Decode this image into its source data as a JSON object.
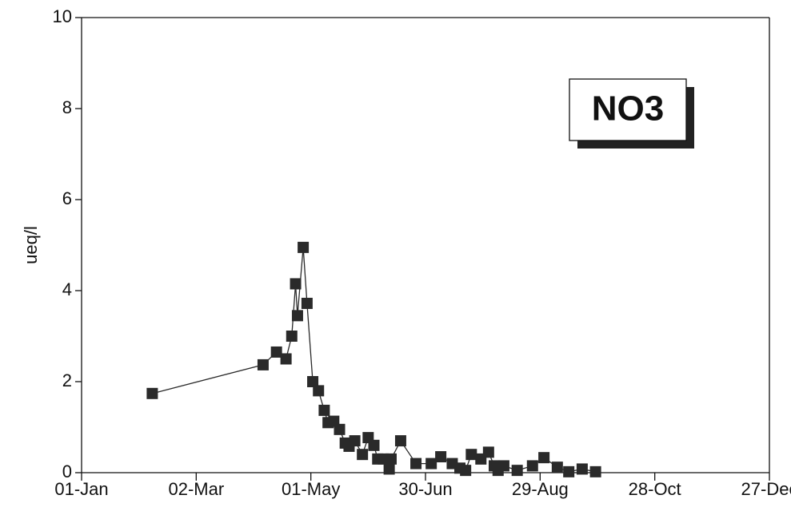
{
  "chart_data": {
    "type": "line",
    "annotation": "NO3",
    "ylabel": "ueq/l",
    "series": [
      {
        "name": "NO3",
        "color": "#2a2a2a",
        "x": [
          37,
          95,
          102,
          107,
          110,
          112,
          113,
          116,
          118,
          121,
          124,
          127,
          129,
          132,
          135,
          138,
          140,
          143,
          147,
          150,
          153,
          155,
          158,
          161,
          162,
          167,
          175,
          183,
          188,
          194,
          198,
          201,
          204,
          209,
          213,
          216,
          218,
          221,
          228,
          236,
          242,
          249,
          255,
          262,
          269
        ],
        "values": [
          1.74,
          2.37,
          2.65,
          2.5,
          3.0,
          4.15,
          3.45,
          4.95,
          3.72,
          2.0,
          1.8,
          1.37,
          1.1,
          1.13,
          0.95,
          0.65,
          0.58,
          0.7,
          0.4,
          0.77,
          0.6,
          0.3,
          0.3,
          0.08,
          0.3,
          0.7,
          0.2,
          0.2,
          0.35,
          0.2,
          0.1,
          0.05,
          0.4,
          0.3,
          0.45,
          0.15,
          0.05,
          0.15,
          0.05,
          0.15,
          0.33,
          0.12,
          0.02,
          0.08,
          0.02
        ]
      }
    ],
    "xlim": [
      0,
      360
    ],
    "xticks": [
      {
        "value": 0,
        "label": "01-Jan"
      },
      {
        "value": 60,
        "label": "02-Mar"
      },
      {
        "value": 120,
        "label": "01-May"
      },
      {
        "value": 180,
        "label": "30-Jun"
      },
      {
        "value": 240,
        "label": "29-Aug"
      },
      {
        "value": 300,
        "label": "28-Oct"
      },
      {
        "value": 360,
        "label": "27-Dec"
      }
    ],
    "ylim": [
      0,
      10
    ],
    "yticks": [
      0,
      2,
      4,
      6,
      8,
      10
    ]
  }
}
